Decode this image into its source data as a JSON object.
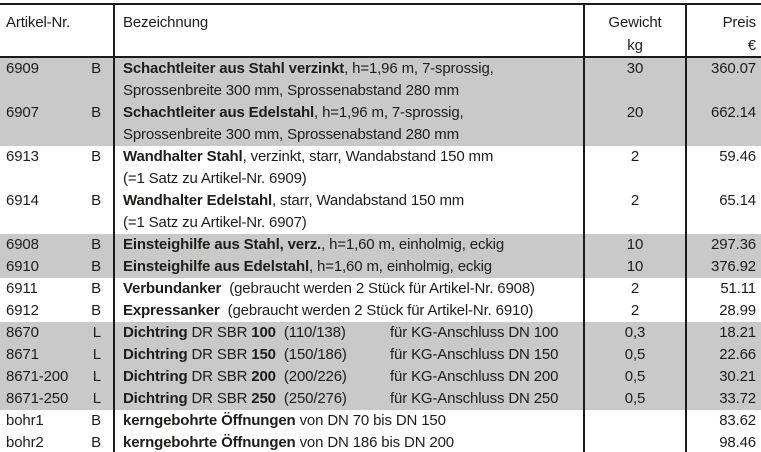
{
  "table": {
    "header": {
      "artikel": "Artikel-Nr.",
      "bezeichnung": "Bezeichnung",
      "gewicht_line1": "Gewicht",
      "gewicht_line2": "kg",
      "preis_line1": "Preis",
      "preis_line2": "€"
    },
    "colors": {
      "row_shaded": "#c9c9c9",
      "rule": "#1b1b1b",
      "text": "#1d1d1b"
    },
    "rows": [
      {
        "artnr": "6909",
        "code": "B",
        "shaded": true,
        "line1": [
          {
            "t": "Schachtleiter aus Stahl verzinkt",
            "b": true
          },
          {
            "t": ", h=1,96 m, 7-sprossig,",
            "b": false
          }
        ],
        "line2": [
          {
            "t": "Sprossenbreite 300 mm, Sprossenabstand 280 mm",
            "b": false
          }
        ],
        "gewicht": "30",
        "preis": "360.07"
      },
      {
        "artnr": "6907",
        "code": "B",
        "shaded": true,
        "line1": [
          {
            "t": "Schachtleiter aus Edelstahl",
            "b": true
          },
          {
            "t": ", h=1,96 m, 7-sprossig,",
            "b": false
          }
        ],
        "line2": [
          {
            "t": "Sprossenbreite 300 mm, Sprossenabstand 280 mm",
            "b": false
          }
        ],
        "gewicht": "20",
        "preis": "662.14"
      },
      {
        "artnr": "6913",
        "code": "B",
        "shaded": false,
        "line1": [
          {
            "t": "Wandhalter Stahl",
            "b": true
          },
          {
            "t": ", verzinkt, starr, Wandabstand 150 mm",
            "b": false
          }
        ],
        "line2": [
          {
            "t": "(=1 Satz zu Artikel-Nr. 6909)",
            "b": false
          }
        ],
        "gewicht": "2",
        "preis": "59.46"
      },
      {
        "artnr": "6914",
        "code": "B",
        "shaded": false,
        "line1": [
          {
            "t": "Wandhalter Edelstahl",
            "b": true
          },
          {
            "t": ", starr, Wandabstand 150 mm",
            "b": false
          }
        ],
        "line2": [
          {
            "t": "(=1 Satz zu Artikel-Nr. 6907)",
            "b": false
          }
        ],
        "gewicht": "2",
        "preis": "65.14"
      },
      {
        "artnr": "6908",
        "code": "B",
        "shaded": true,
        "line1": [
          {
            "t": "Einsteighilfe aus Stahl, verz.",
            "b": true
          },
          {
            "t": ", h=1,60 m, einholmig, eckig",
            "b": false
          }
        ],
        "gewicht": "10",
        "preis": "297.36"
      },
      {
        "artnr": "6910",
        "code": "B",
        "shaded": true,
        "line1": [
          {
            "t": "Einsteighilfe aus Edelstahl",
            "b": true
          },
          {
            "t": ", h=1,60 m, einholmig, eckig",
            "b": false
          }
        ],
        "gewicht": "10",
        "preis": "376.92"
      },
      {
        "artnr": "6911",
        "code": "B",
        "shaded": false,
        "line1": [
          {
            "t": "Verbundanker",
            "b": true
          },
          {
            "t": "  (gebraucht werden 2 Stück für Artikel-Nr. 6908)",
            "b": false
          }
        ],
        "gewicht": "2",
        "preis": "51.11"
      },
      {
        "artnr": "6912",
        "code": "B",
        "shaded": false,
        "line1": [
          {
            "t": "Expressanker",
            "b": true
          },
          {
            "t": "  (gebraucht werden 2 Stück für Artikel-Nr. 6910)",
            "b": false
          }
        ],
        "gewicht": "2",
        "preis": "28.99"
      },
      {
        "artnr": "8670",
        "code": "L",
        "shaded": true,
        "line1": [
          {
            "t": "Dichtring",
            "b": true
          },
          {
            "t": " DR SBR ",
            "b": false
          },
          {
            "t": "100",
            "b": true
          },
          {
            "t": "  (110/138)",
            "b": false
          }
        ],
        "tab": "für KG-Anschluss DN 100",
        "gewicht": "0,3",
        "preis": "18.21"
      },
      {
        "artnr": "8671",
        "code": "L",
        "shaded": true,
        "line1": [
          {
            "t": "Dichtring",
            "b": true
          },
          {
            "t": " DR SBR ",
            "b": false
          },
          {
            "t": "150",
            "b": true
          },
          {
            "t": "  (150/186)",
            "b": false
          }
        ],
        "tab": "für KG-Anschluss DN 150",
        "gewicht": "0,5",
        "preis": "22.66"
      },
      {
        "artnr": "8671-200",
        "code": "L",
        "shaded": true,
        "line1": [
          {
            "t": "Dichtring",
            "b": true
          },
          {
            "t": " DR SBR ",
            "b": false
          },
          {
            "t": "200",
            "b": true
          },
          {
            "t": "  (200/226)",
            "b": false
          }
        ],
        "tab": "für KG-Anschluss DN 200",
        "gewicht": "0,5",
        "preis": "30.21"
      },
      {
        "artnr": "8671-250",
        "code": "L",
        "shaded": true,
        "line1": [
          {
            "t": "Dichtring",
            "b": true
          },
          {
            "t": " DR SBR ",
            "b": false
          },
          {
            "t": "250",
            "b": true
          },
          {
            "t": "  (250/276)",
            "b": false
          }
        ],
        "tab": "für KG-Anschluss DN 250",
        "gewicht": "0,5",
        "preis": "33.72"
      },
      {
        "artnr": "bohr1",
        "code": "B",
        "shaded": false,
        "line1": [
          {
            "t": "kerngebohrte Öffnungen",
            "b": true
          },
          {
            "t": " von DN 70 bis DN 150",
            "b": false
          }
        ],
        "gewicht": "",
        "preis": "83.62"
      },
      {
        "artnr": "bohr2",
        "code": "B",
        "shaded": false,
        "line1": [
          {
            "t": "kerngebohrte Öffnungen",
            "b": true
          },
          {
            "t": " von DN 186 bis DN 200",
            "b": false
          }
        ],
        "gewicht": "",
        "preis": "98.46"
      }
    ]
  }
}
